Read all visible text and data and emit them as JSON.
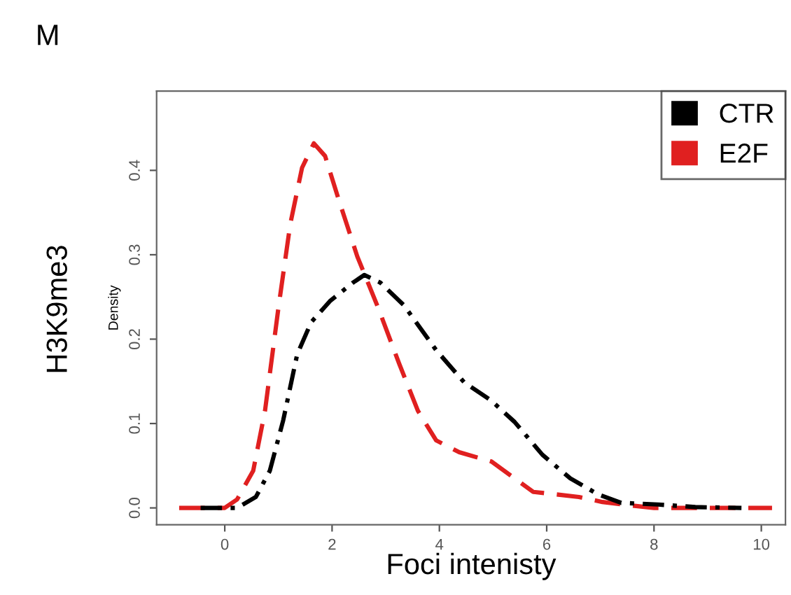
{
  "chart_data": {
    "type": "line",
    "title": "M",
    "xlabel": "Foci intenisty",
    "ylabel": "Density",
    "annotations": [
      "H3K9me3"
    ],
    "xlim": [
      -1.27,
      10.45
    ],
    "ylim": [
      -0.02,
      0.494
    ],
    "xticks": [
      0,
      2,
      4,
      6,
      8,
      10
    ],
    "yticks": [
      {
        "value": 0,
        "label": "0.0"
      },
      0.1,
      0.2,
      0.3,
      0.4
    ],
    "grid": false,
    "legend": "top right",
    "marker": "none",
    "series": [
      {
        "name": "CTR",
        "color": "#000000",
        "line_style": "dashdot",
        "x": [
          -0.45,
          0.23,
          0.58,
          0.84,
          1.09,
          1.35,
          1.61,
          1.96,
          2.39,
          2.6,
          2.9,
          3.34,
          3.94,
          4.46,
          4.97,
          5.4,
          5.92,
          6.44,
          6.96,
          7.39,
          8.08,
          8.77,
          9.63
        ],
        "values": [
          0,
          0,
          0.013,
          0.044,
          0.104,
          0.182,
          0.22,
          0.245,
          0.267,
          0.276,
          0.267,
          0.24,
          0.187,
          0.149,
          0.127,
          0.102,
          0.063,
          0.035,
          0.016,
          0.006,
          0.004,
          0.001,
          0
        ]
      },
      {
        "name": "E2F",
        "color": "#e02020",
        "line_style": "dashed",
        "x": [
          -0.85,
          0,
          0.23,
          0.53,
          0.75,
          1.0,
          1.22,
          1.44,
          1.66,
          1.87,
          2.13,
          2.47,
          2.86,
          3.25,
          3.6,
          3.94,
          4.37,
          4.97,
          5.4,
          5.75,
          6.18,
          6.6,
          7.04,
          7.56,
          8.0,
          10.2
        ],
        "values": [
          0,
          0,
          0.01,
          0.044,
          0.115,
          0.237,
          0.336,
          0.403,
          0.432,
          0.417,
          0.364,
          0.298,
          0.237,
          0.171,
          0.115,
          0.08,
          0.066,
          0.055,
          0.035,
          0.019,
          0.016,
          0.013,
          0.007,
          0.003,
          0,
          0
        ]
      }
    ]
  }
}
